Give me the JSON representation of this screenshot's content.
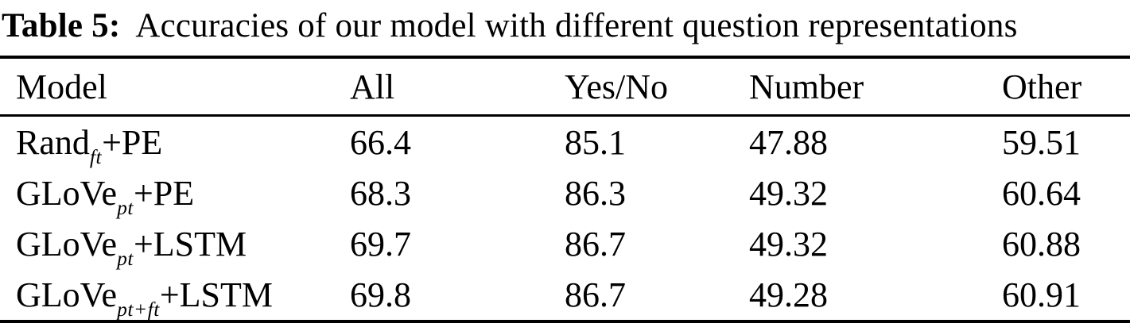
{
  "caption": {
    "label": "Table 5:",
    "text": "Accuracies of our model with different question representations"
  },
  "table": {
    "columns": [
      "Model",
      "All",
      "Yes/No",
      "Number",
      "Other"
    ],
    "rows": [
      {
        "model": {
          "base": "Rand",
          "sub": "ft",
          "suffix": "+PE"
        },
        "values": [
          "66.4",
          "85.1",
          "47.88",
          "59.51"
        ]
      },
      {
        "model": {
          "base": "GLoVe",
          "sub": "pt",
          "suffix": "+PE"
        },
        "values": [
          "68.3",
          "86.3",
          "49.32",
          "60.64"
        ]
      },
      {
        "model": {
          "base": "GLoVe",
          "sub": "pt",
          "suffix": "+LSTM"
        },
        "values": [
          "69.7",
          "86.7",
          "49.32",
          "60.88"
        ]
      },
      {
        "model": {
          "base": "GLoVe",
          "sub": "pt+ft",
          "suffix": "+LSTM"
        },
        "values": [
          "69.8",
          "86.7",
          "49.28",
          "60.91"
        ]
      }
    ]
  }
}
